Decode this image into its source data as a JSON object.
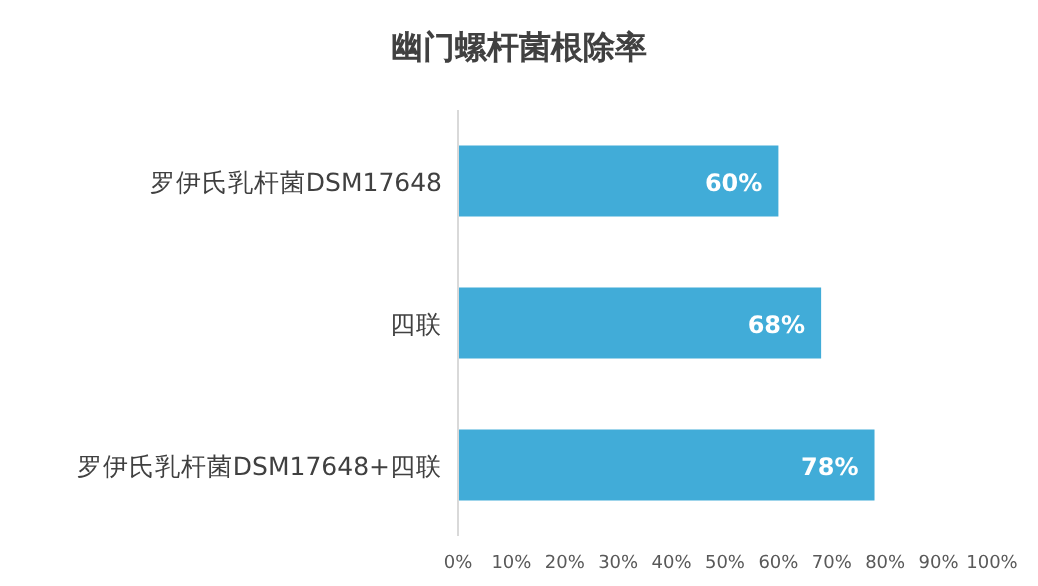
{
  "chart_data": {
    "type": "bar",
    "orientation": "horizontal",
    "title": "幽门螺杆菌根除率",
    "categories": [
      "罗伊氏乳杆菌DSM17648",
      "四联",
      "罗伊氏乳杆菌DSM17648+四联"
    ],
    "values": [
      60,
      68,
      78
    ],
    "color": "#41acd8",
    "value_labels": [
      "60%",
      "68%",
      "78%"
    ],
    "xlim": [
      0,
      100
    ],
    "xticks": [
      {
        "value": 0,
        "label": "0%"
      },
      {
        "value": 10,
        "label": "10%"
      },
      {
        "value": 20,
        "label": "20%"
      },
      {
        "value": 30,
        "label": "30%"
      },
      {
        "value": 40,
        "label": "40%"
      },
      {
        "value": 50,
        "label": "50%"
      },
      {
        "value": 60,
        "label": "60%"
      },
      {
        "value": 70,
        "label": "70%"
      },
      {
        "value": 80,
        "label": "80%"
      },
      {
        "value": 90,
        "label": "90%"
      },
      {
        "value": 100,
        "label": "100%"
      }
    ],
    "grid": false
  }
}
